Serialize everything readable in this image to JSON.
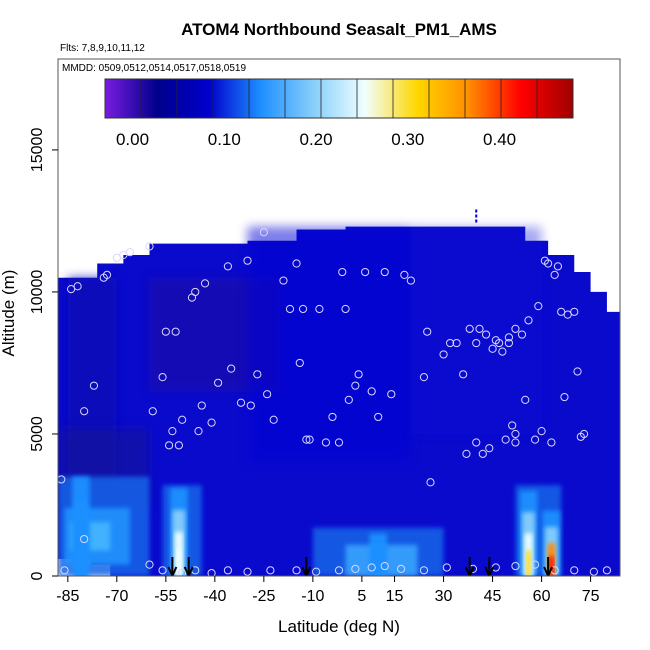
{
  "chart_data": {
    "type": "heatmap",
    "title": "ATOM4 Northbound Seasalt_PM1_AMS",
    "flights_label": "Flts: 7,8,9,10,11,12",
    "dates_label": "MMDD: 0509,0512,0514,0517,0518,0519",
    "xlabel": "Latitude (deg N)",
    "ylabel": "Altitude (m)",
    "xlim": [
      -88,
      84
    ],
    "ylim": [
      0,
      18200
    ],
    "x_ticks": [
      -85,
      -70,
      -55,
      -40,
      -25,
      -10,
      5,
      15,
      30,
      45,
      60,
      75
    ],
    "y_ticks": [
      0,
      5000,
      10000,
      15000
    ],
    "colorbar": {
      "range": [
        -0.03,
        0.48
      ],
      "ticks": [
        0.0,
        0.1,
        0.2,
        0.3,
        0.4
      ],
      "tick_labels": [
        "0.00",
        "0.10",
        "0.20",
        "0.30",
        "0.40"
      ],
      "colors": [
        "#7a1ce0",
        "#00008b",
        "#0000cd",
        "#1e90ff",
        "#87cefa",
        "#f0ffff",
        "#ffd700",
        "#ff8c00",
        "#ff0000",
        "#a00000"
      ]
    },
    "curtain_top": [
      [
        -85,
        10500
      ],
      [
        -76,
        11000
      ],
      [
        -68,
        11300
      ],
      [
        -60,
        11700
      ],
      [
        -45,
        11700
      ],
      [
        -30,
        11800
      ],
      [
        -15,
        12200
      ],
      [
        0,
        12300
      ],
      [
        15,
        12300
      ],
      [
        30,
        12300
      ],
      [
        48,
        12300
      ],
      [
        55,
        11800
      ],
      [
        62,
        11300
      ],
      [
        70,
        10700
      ],
      [
        75,
        10000
      ],
      [
        80,
        9300
      ]
    ],
    "curtain_bottom_left_gap": [
      [
        -88,
        1200
      ],
      [
        -78,
        600
      ],
      [
        -72,
        400
      ]
    ],
    "enhancements": [
      {
        "lat": -51,
        "alt_top": 3100,
        "peak_value": 0.27
      },
      {
        "lat": -81,
        "alt_top": 3500,
        "peak_value": 0.14
      },
      {
        "lat": 10,
        "alt_top": 1500,
        "peak_value": 0.16
      },
      {
        "lat": 56,
        "alt_top": 3000,
        "peak_value": 0.3
      },
      {
        "lat": 63,
        "alt_top": 2300,
        "peak_value": 0.42
      }
    ],
    "sample_points": [
      [
        -87,
        3400
      ],
      [
        -84,
        10100
      ],
      [
        -82,
        10200
      ],
      [
        -80,
        5800
      ],
      [
        -77,
        6700
      ],
      [
        -74,
        10500
      ],
      [
        -73,
        10600
      ],
      [
        -70,
        11200
      ],
      [
        -68,
        11300
      ],
      [
        -66,
        11400
      ],
      [
        -60,
        11600
      ],
      [
        -59,
        5800
      ],
      [
        -56,
        7000
      ],
      [
        -55,
        8600
      ],
      [
        -54,
        4600
      ],
      [
        -53,
        5100
      ],
      [
        -52,
        8600
      ],
      [
        -51,
        4600
      ],
      [
        -50,
        5500
      ],
      [
        -47,
        9800
      ],
      [
        -46,
        10000
      ],
      [
        -45,
        5100
      ],
      [
        -44,
        6000
      ],
      [
        -43,
        10300
      ],
      [
        -41,
        5400
      ],
      [
        -39,
        6800
      ],
      [
        -36,
        10900
      ],
      [
        -35,
        7300
      ],
      [
        -32,
        6100
      ],
      [
        -30,
        11100
      ],
      [
        -29,
        6000
      ],
      [
        -27,
        7100
      ],
      [
        -25,
        12100
      ],
      [
        -24,
        6400
      ],
      [
        -22,
        5500
      ],
      [
        -19,
        10400
      ],
      [
        -17,
        9400
      ],
      [
        -15,
        11000
      ],
      [
        -14,
        7500
      ],
      [
        -13,
        9400
      ],
      [
        -12,
        4800
      ],
      [
        -11,
        4800
      ],
      [
        -8,
        9400
      ],
      [
        -6,
        4700
      ],
      [
        -4,
        5600
      ],
      [
        -2,
        4700
      ],
      [
        -1,
        10700
      ],
      [
        0,
        9400
      ],
      [
        1,
        6200
      ],
      [
        3,
        6700
      ],
      [
        4,
        7100
      ],
      [
        6,
        10700
      ],
      [
        8,
        6500
      ],
      [
        10,
        5600
      ],
      [
        12,
        10700
      ],
      [
        14,
        6400
      ],
      [
        18,
        10600
      ],
      [
        20,
        10400
      ],
      [
        24,
        7000
      ],
      [
        25,
        8600
      ],
      [
        26,
        3300
      ],
      [
        30,
        7800
      ],
      [
        32,
        8200
      ],
      [
        34,
        8200
      ],
      [
        36,
        7100
      ],
      [
        37,
        4300
      ],
      [
        38,
        8700
      ],
      [
        40,
        4700
      ],
      [
        40,
        8200
      ],
      [
        41,
        8700
      ],
      [
        42,
        4300
      ],
      [
        43,
        8500
      ],
      [
        44,
        4500
      ],
      [
        45,
        8000
      ],
      [
        46,
        8300
      ],
      [
        47,
        8200
      ],
      [
        48,
        7900
      ],
      [
        49,
        4800
      ],
      [
        50,
        8200
      ],
      [
        50,
        8400
      ],
      [
        51,
        5300
      ],
      [
        52,
        4700
      ],
      [
        52,
        5000
      ],
      [
        52,
        8700
      ],
      [
        54,
        8500
      ],
      [
        55,
        6200
      ],
      [
        56,
        9000
      ],
      [
        58,
        4800
      ],
      [
        59,
        9500
      ],
      [
        60,
        5100
      ],
      [
        61,
        11100
      ],
      [
        62,
        11000
      ],
      [
        63,
        4700
      ],
      [
        64,
        10600
      ],
      [
        65,
        10900
      ],
      [
        66,
        9300
      ],
      [
        67,
        6300
      ],
      [
        68,
        9200
      ],
      [
        70,
        9300
      ],
      [
        71,
        7200
      ],
      [
        72,
        4900
      ],
      [
        73,
        5000
      ],
      [
        -86,
        200
      ],
      [
        -80,
        1300
      ],
      [
        -60,
        400
      ],
      [
        -56,
        200
      ],
      [
        -50,
        100
      ],
      [
        -46,
        200
      ],
      [
        -41,
        100
      ],
      [
        -36,
        200
      ],
      [
        -30,
        150
      ],
      [
        -23,
        200
      ],
      [
        -15,
        200
      ],
      [
        -9,
        150
      ],
      [
        -2,
        200
      ],
      [
        3,
        250
      ],
      [
        8,
        300
      ],
      [
        12,
        350
      ],
      [
        17,
        250
      ],
      [
        24,
        200
      ],
      [
        31,
        300
      ],
      [
        39,
        250
      ],
      [
        46,
        300
      ],
      [
        52,
        350
      ],
      [
        58,
        400
      ],
      [
        64,
        200
      ],
      [
        70,
        200
      ],
      [
        76,
        150
      ],
      [
        80,
        200
      ]
    ],
    "markers": {
      "arrows_lat": [
        -53,
        -48,
        -12,
        38,
        44,
        62
      ],
      "top_marker": {
        "lat": 40,
        "alt": 12900
      }
    }
  }
}
